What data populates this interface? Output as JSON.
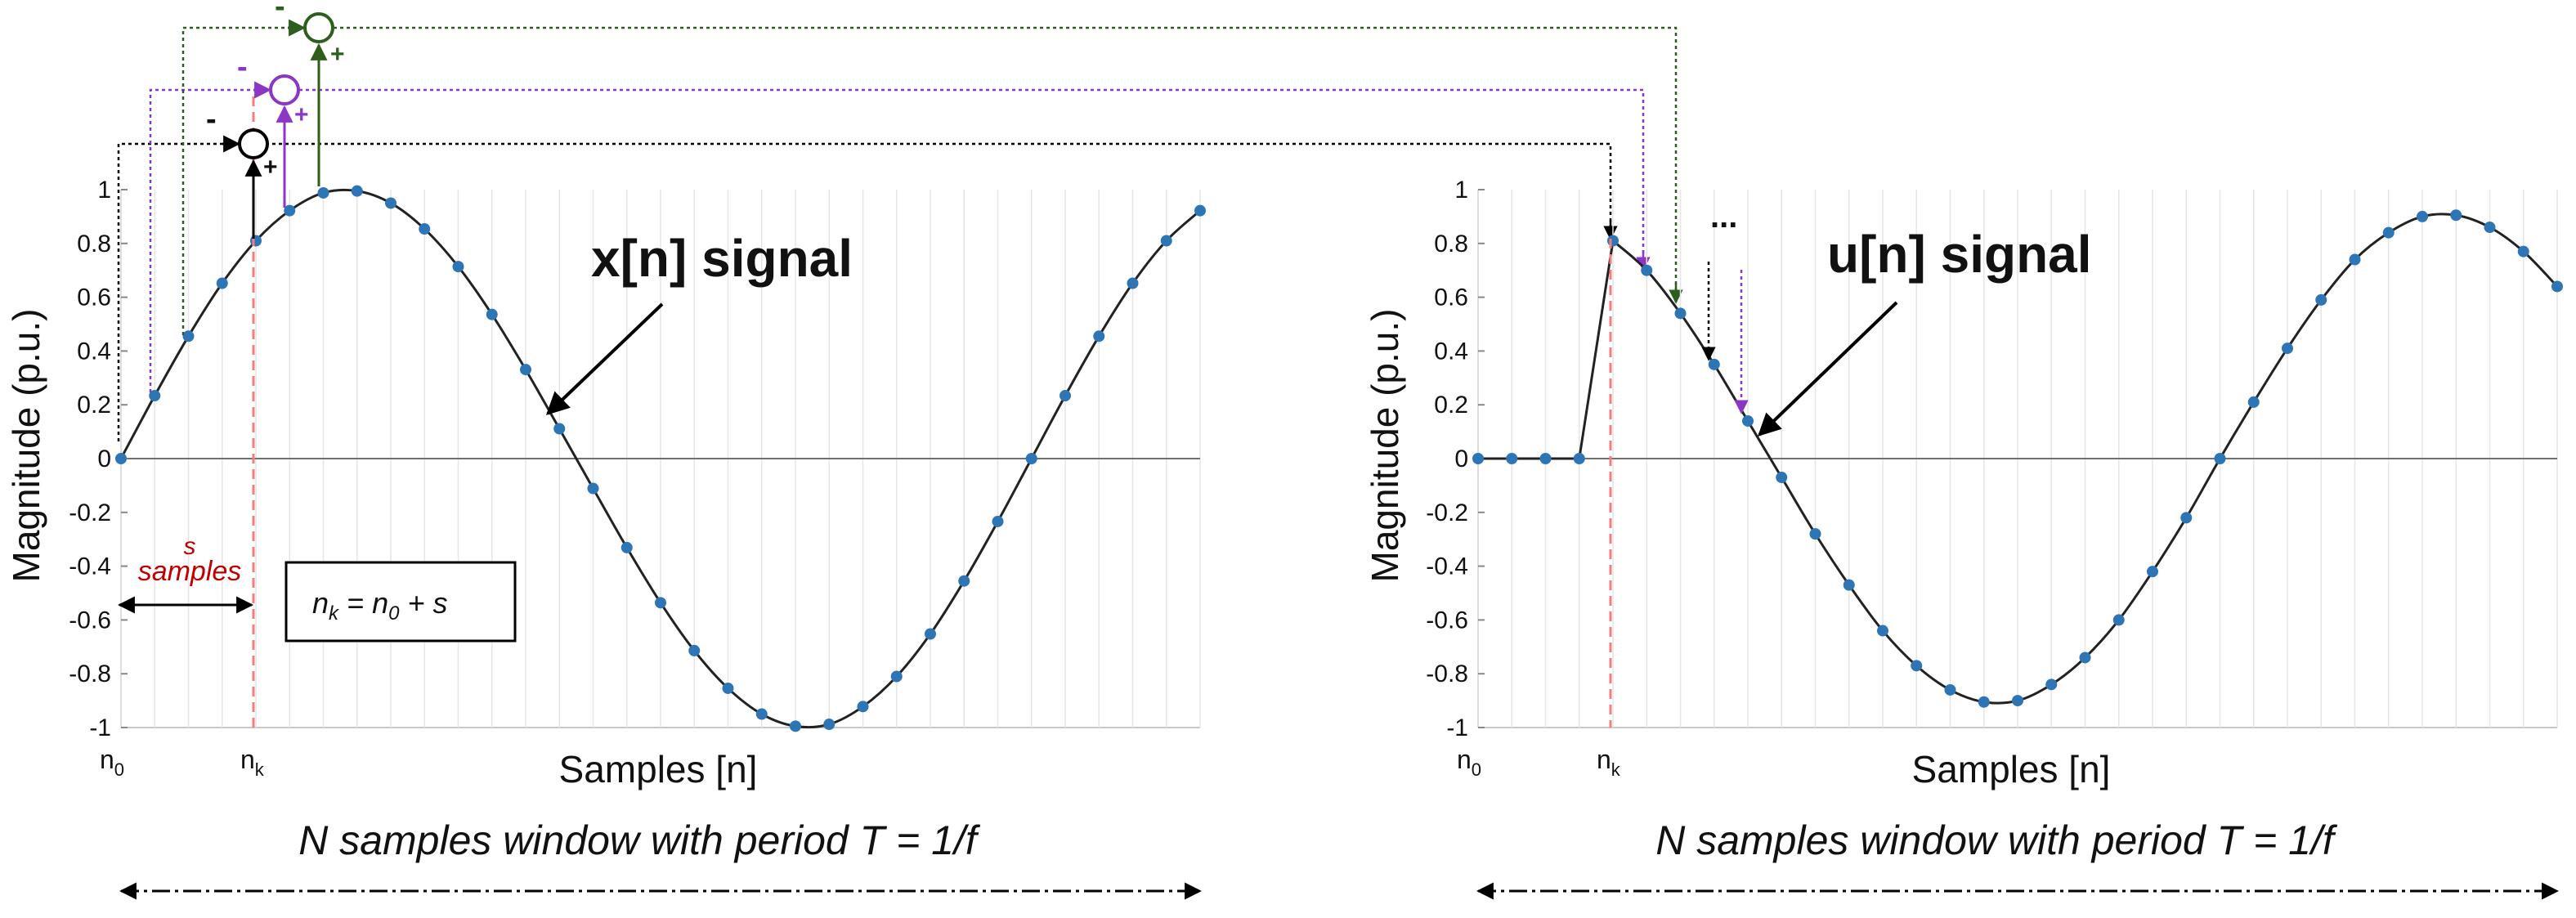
{
  "chart_data": [
    {
      "type": "line",
      "id": "x",
      "ylabel": "Magnitude (p.u.)",
      "xlabel": "Samples [n]",
      "ylim": [
        -1,
        1
      ],
      "yticks": [
        1,
        0.8,
        0.6,
        0.4,
        0.2,
        0,
        -0.2,
        -0.4,
        -0.6,
        -0.8,
        -1
      ],
      "ytick_labels": [
        "1",
        "0.8",
        "0.6",
        "0.4",
        "0.2",
        "0",
        "-0.2",
        "-0.4",
        "-0.6",
        "-0.8",
        "-1"
      ],
      "xlim": [
        0,
        32
      ],
      "x_tick_labels": {
        "n0": {
          "main": "n",
          "sub": "0"
        },
        "nk": {
          "main": "n",
          "sub": "k"
        }
      },
      "nk_index": 4,
      "signal_label": "x[n] signal",
      "window_label": "N samples window with period",
      "window_formula": "T = 1/f",
      "annotation_s": "s",
      "annotation_samples": "samples",
      "equation": {
        "n": "n",
        "k": "k",
        "eq": " = ",
        "n0": "n",
        "zero": "0",
        "plus_s": " + s"
      },
      "feedback": [
        {
          "color": "#000000",
          "minus": "-",
          "plus": "+"
        },
        {
          "color": "#8B36C4",
          "minus": "-",
          "plus": "+"
        },
        {
          "color": "#2E5E1E",
          "minus": "-",
          "plus": "+"
        }
      ],
      "series": [
        {
          "name": "x[n]",
          "x": [
            0,
            1,
            2,
            3,
            4,
            5,
            6,
            7,
            8,
            9,
            10,
            11,
            12,
            13,
            14,
            15,
            16,
            17,
            18,
            19,
            20,
            21,
            22,
            23,
            24,
            25,
            26,
            27,
            28,
            29,
            30,
            31,
            32
          ],
          "values": [
            0.0,
            0.234,
            0.455,
            0.652,
            0.81,
            0.922,
            0.988,
            0.995,
            0.95,
            0.854,
            0.714,
            0.536,
            0.331,
            0.111,
            -0.111,
            -0.331,
            -0.536,
            -0.714,
            -0.854,
            -0.95,
            -0.995,
            -0.988,
            -0.922,
            -0.81,
            -0.652,
            -0.455,
            -0.234,
            0.0,
            0.234,
            0.455,
            0.652,
            0.81,
            0.922
          ]
        }
      ]
    },
    {
      "type": "line",
      "id": "u",
      "ylabel": "Magnitude (p.u.)",
      "xlabel": "Samples [n]",
      "ylim": [
        -1,
        1
      ],
      "yticks": [
        1,
        0.8,
        0.6,
        0.4,
        0.2,
        0,
        -0.2,
        -0.4,
        -0.6,
        -0.8,
        -1
      ],
      "ytick_labels": [
        "1",
        "0.8",
        "0.6",
        "0.4",
        "0.2",
        "0",
        "-0.2",
        "-0.4",
        "-0.6",
        "-0.8",
        "-1"
      ],
      "xlim": [
        0,
        32
      ],
      "x_tick_labels": {
        "n0": {
          "main": "n",
          "sub": "0"
        },
        "nk": {
          "main": "n",
          "sub": "k"
        }
      },
      "nk_index": 4,
      "signal_label": "u[n] signal",
      "window_label": "N samples window with period",
      "window_formula": "T = 1/f",
      "ellipsis": "...",
      "series": [
        {
          "name": "u[n]",
          "x": [
            0,
            1,
            2,
            3,
            4,
            5,
            6,
            7,
            8,
            9,
            10,
            11,
            12,
            13,
            14,
            15,
            16,
            17,
            18,
            19,
            20,
            21,
            22,
            23,
            24,
            25,
            26,
            27,
            28,
            29,
            30,
            31,
            32
          ],
          "values": [
            0,
            0,
            0,
            0,
            0.81,
            0.7,
            0.54,
            0.35,
            0.14,
            -0.07,
            -0.28,
            -0.47,
            -0.64,
            -0.77,
            -0.86,
            -0.905,
            -0.9,
            -0.84,
            -0.74,
            -0.6,
            -0.42,
            -0.22,
            0.0,
            0.21,
            0.41,
            0.59,
            0.74,
            0.84,
            0.9,
            0.905,
            0.86,
            0.77,
            0.64
          ]
        }
      ]
    }
  ]
}
